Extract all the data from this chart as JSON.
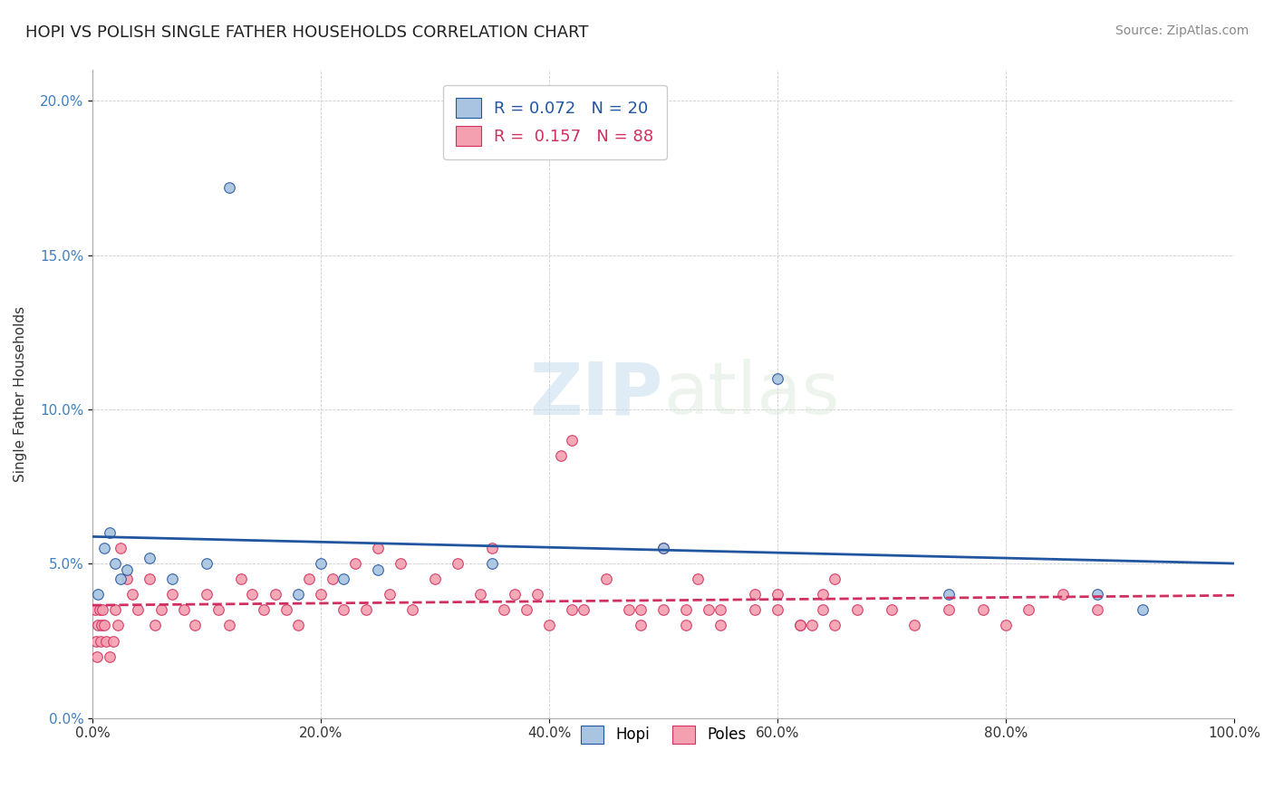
{
  "title": "HOPI VS POLISH SINGLE FATHER HOUSEHOLDS CORRELATION CHART",
  "source": "Source: ZipAtlas.com",
  "xlabel": "",
  "ylabel": "Single Father Households",
  "watermark_zip": "ZIP",
  "watermark_atlas": "atlas",
  "hopi_R": 0.072,
  "hopi_N": 20,
  "poles_R": 0.157,
  "poles_N": 88,
  "hopi_color": "#a8c4e0",
  "hopi_line_color": "#2255a0",
  "poles_color": "#f4a0b0",
  "poles_line_color": "#d03060",
  "background_color": "#ffffff",
  "grid_color": "#cccccc",
  "hopi_points_x": [
    0.5,
    1.0,
    1.5,
    2.0,
    2.5,
    3.0,
    5.0,
    7.0,
    10.0,
    12.0,
    18.0,
    20.0,
    22.0,
    25.0,
    35.0,
    50.0,
    60.0,
    75.0,
    88.0,
    92.0
  ],
  "hopi_points_y": [
    4.0,
    5.5,
    6.0,
    5.0,
    4.5,
    4.8,
    5.2,
    4.5,
    5.0,
    17.2,
    4.0,
    5.0,
    4.5,
    4.8,
    5.0,
    5.5,
    11.0,
    4.0,
    4.0,
    3.5
  ],
  "poles_points_x": [
    0.2,
    0.3,
    0.4,
    0.5,
    0.6,
    0.7,
    0.8,
    0.9,
    1.0,
    1.2,
    1.5,
    1.8,
    2.0,
    2.2,
    2.5,
    3.0,
    3.5,
    4.0,
    5.0,
    5.5,
    6.0,
    7.0,
    8.0,
    9.0,
    10.0,
    11.0,
    12.0,
    13.0,
    14.0,
    15.0,
    16.0,
    17.0,
    18.0,
    19.0,
    20.0,
    21.0,
    22.0,
    23.0,
    24.0,
    25.0,
    26.0,
    27.0,
    28.0,
    30.0,
    32.0,
    34.0,
    35.0,
    36.0,
    37.0,
    38.0,
    39.0,
    40.0,
    41.0,
    42.0,
    43.0,
    45.0,
    47.0,
    48.0,
    50.0,
    52.0,
    53.0,
    54.0,
    55.0,
    58.0,
    60.0,
    62.0,
    63.0,
    64.0,
    65.0,
    42.0,
    48.0,
    50.0,
    52.0,
    55.0,
    58.0,
    60.0,
    62.0,
    64.0,
    65.0,
    67.0,
    70.0,
    72.0,
    75.0,
    78.0,
    80.0,
    82.0,
    85.0,
    88.0
  ],
  "poles_points_y": [
    3.5,
    2.5,
    2.0,
    3.0,
    3.5,
    2.5,
    3.0,
    3.5,
    3.0,
    2.5,
    2.0,
    2.5,
    3.5,
    3.0,
    5.5,
    4.5,
    4.0,
    3.5,
    4.5,
    3.0,
    3.5,
    4.0,
    3.5,
    3.0,
    4.0,
    3.5,
    3.0,
    4.5,
    4.0,
    3.5,
    4.0,
    3.5,
    3.0,
    4.5,
    4.0,
    4.5,
    3.5,
    5.0,
    3.5,
    5.5,
    4.0,
    5.0,
    3.5,
    4.5,
    5.0,
    4.0,
    5.5,
    3.5,
    4.0,
    3.5,
    4.0,
    3.0,
    8.5,
    9.0,
    3.5,
    4.5,
    3.5,
    3.5,
    5.5,
    3.5,
    4.5,
    3.5,
    3.5,
    4.0,
    4.0,
    3.0,
    3.0,
    4.0,
    4.5,
    3.5,
    3.0,
    3.5,
    3.0,
    3.0,
    3.5,
    3.5,
    3.0,
    3.5,
    3.0,
    3.5,
    3.5,
    3.0,
    3.5,
    3.5,
    3.0,
    3.5,
    4.0,
    3.5
  ],
  "xlim": [
    0,
    100
  ],
  "ylim": [
    0,
    21
  ],
  "yticks": [
    0,
    5,
    10,
    15,
    20
  ],
  "ytick_labels": [
    "0.0%",
    "5.0%",
    "10.0%",
    "15.0%",
    "20.0%"
  ],
  "xticks": [
    0,
    20,
    40,
    60,
    80,
    100
  ],
  "xtick_labels": [
    "0.0%",
    "20.0%",
    "40.0%",
    "60.0%",
    "80.0%",
    "100.0%"
  ],
  "legend_top_labels": [
    "R = 0.072   N = 20",
    "R =  0.157   N = 88"
  ],
  "legend_bottom_labels": [
    "Hopi",
    "Poles"
  ]
}
